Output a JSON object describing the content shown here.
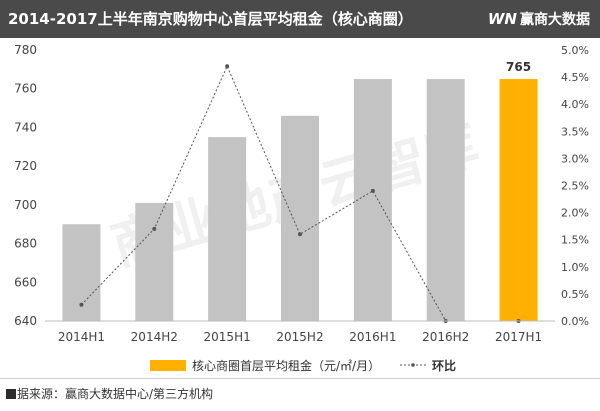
{
  "header": {
    "title": "2014-2017上半年南京购物中心首层平均租金（核心商圈）",
    "logo_mark": "WN",
    "logo_text": "赢商大数据"
  },
  "watermark": "商业地产云智库",
  "footer": {
    "label_box": "数",
    "label_rest": "据来源：",
    "text": "赢商大数据中心/第三方机构"
  },
  "colors": {
    "bar": "#c3c3c3",
    "bar_highlight": "#ffb000",
    "line": "#555555",
    "header_bg": "#4a4a4a"
  },
  "chart_data": {
    "type": "bar",
    "categories": [
      "2014H1",
      "2014H2",
      "2015H1",
      "2015H2",
      "2016H1",
      "2016H2",
      "2017H1"
    ],
    "series": [
      {
        "name": "核心商圈首层平均租金（元/㎡/月）",
        "axis": "left",
        "type": "bar",
        "values": [
          690,
          701,
          735,
          746,
          765,
          765,
          765
        ],
        "highlight_index": 6
      },
      {
        "name": "环比",
        "axis": "right",
        "type": "line",
        "style": "dotted",
        "values": [
          0.3,
          1.7,
          4.7,
          1.6,
          2.4,
          0.0,
          0.0
        ]
      }
    ],
    "data_labels": [
      {
        "index": 6,
        "text": "765"
      }
    ],
    "y_left": {
      "min": 640,
      "max": 780,
      "ticks": [
        "640",
        "660",
        "680",
        "700",
        "720",
        "740",
        "760",
        "780"
      ]
    },
    "y_right": {
      "min": 0,
      "max": 5,
      "ticks": [
        "0.0%",
        "0.5%",
        "1.0%",
        "1.5%",
        "2.0%",
        "2.5%",
        "3.0%",
        "3.5%",
        "4.0%",
        "4.5%",
        "5.0%"
      ]
    },
    "legend_position": "bottom",
    "grid": false
  }
}
